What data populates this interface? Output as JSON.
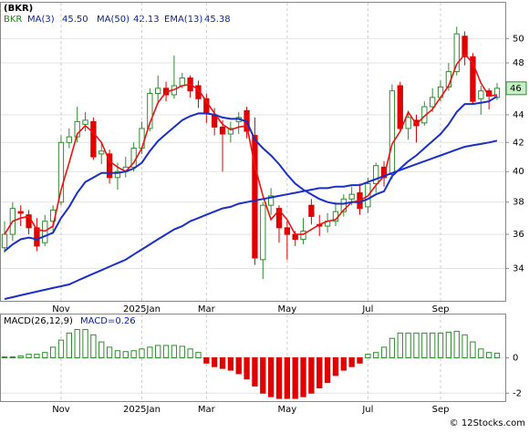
{
  "chart_data": [
    {
      "type": "candlestick",
      "title": "(BKR)",
      "name": "BKR",
      "categories": [
        null,
        null,
        null,
        null,
        null,
        null,
        null,
        "Nov",
        null,
        null,
        null,
        null,
        null,
        null,
        null,
        null,
        null,
        "2025Jan",
        null,
        null,
        null,
        null,
        null,
        null,
        null,
        "Mar",
        null,
        null,
        null,
        null,
        null,
        null,
        null,
        null,
        null,
        "May",
        null,
        null,
        null,
        null,
        null,
        null,
        null,
        null,
        null,
        "Jul",
        null,
        null,
        null,
        null,
        null,
        null,
        null,
        null,
        "Sep",
        null,
        null,
        null,
        null,
        null,
        null,
        null
      ],
      "open": [
        35.2,
        36,
        37.4,
        37.2,
        36.4,
        35.5,
        36.8,
        38,
        42,
        42.4,
        43.3,
        43.5,
        41.2,
        41.2,
        39.6,
        40,
        40.3,
        41.6,
        43,
        45.6,
        46,
        45.5,
        46.2,
        46.8,
        46.2,
        45.2,
        44,
        43.1,
        42.6,
        43.5,
        44.3,
        42.5,
        34.5,
        37.8,
        37.6,
        36.4,
        36,
        35.7,
        37.8,
        36.6,
        36.5,
        36.8,
        37.4,
        38.2,
        38.6,
        37.7,
        39.2,
        40.3,
        39.8,
        46.2,
        43,
        43.6,
        43.4,
        44.6,
        45.3,
        46.1,
        47.3,
        50.2,
        48.5,
        45.2,
        45.8,
        45.3
      ],
      "high": [
        36.8,
        38,
        37.8,
        37.5,
        37,
        37.2,
        37.8,
        42.5,
        43,
        44.6,
        44.2,
        43.8,
        42,
        41.5,
        40.6,
        41,
        42,
        43.5,
        46,
        47,
        46.5,
        48.6,
        47.2,
        47,
        46.6,
        45.6,
        44.5,
        43.6,
        43.5,
        44.2,
        44.6,
        43.8,
        38,
        38.9,
        37.8,
        36.8,
        36.2,
        37,
        38.2,
        37.2,
        37.3,
        38,
        38.5,
        39,
        39.2,
        39.6,
        40.6,
        40.7,
        46.3,
        46.5,
        44.3,
        44,
        45,
        46,
        46.6,
        48,
        51,
        50.6,
        48.8,
        46.2,
        46,
        46.4
      ],
      "low": [
        34.9,
        35.6,
        36.5,
        36,
        35,
        35.3,
        36.2,
        37.8,
        41.6,
        42,
        42.8,
        40.8,
        40.5,
        39.2,
        38.8,
        39.6,
        40,
        41.2,
        42.8,
        44.8,
        45,
        45.2,
        46,
        45.3,
        44.5,
        43.4,
        42.5,
        40,
        42,
        42.6,
        42.3,
        34.2,
        33.4,
        37.2,
        35.5,
        34.5,
        35.3,
        35.4,
        36.6,
        35.9,
        36.1,
        36.5,
        37.1,
        37.8,
        37.2,
        37.3,
        38.6,
        39,
        39.5,
        42.8,
        42.2,
        42,
        43.2,
        44.2,
        45,
        45.8,
        47,
        47.8,
        44.8,
        44,
        44.4,
        45.1
      ],
      "close": [
        36,
        37.6,
        37.3,
        36.4,
        35.3,
        36.8,
        37.5,
        42,
        42.4,
        43.5,
        43.6,
        41,
        41.4,
        39.6,
        40,
        40.3,
        41.6,
        43,
        45.6,
        46,
        45.5,
        46.2,
        46.8,
        45.8,
        45.2,
        44.1,
        43.1,
        42.6,
        43,
        43.8,
        42.8,
        34.6,
        37.8,
        38.4,
        36.4,
        36,
        35.7,
        36.2,
        37.1,
        36.5,
        36.8,
        37.4,
        38.2,
        38.5,
        37.6,
        39.2,
        40.4,
        39.6,
        45.8,
        43,
        43.8,
        43.2,
        44.6,
        45.3,
        46.1,
        47.3,
        50.4,
        48.5,
        45,
        45.8,
        45.4,
        46
      ],
      "up_color": "#2e8b2e",
      "down_color": "#e00000",
      "name_color": "#1a8a1a",
      "lines": [
        {
          "name": "MA(3)",
          "legend_value": {
            "value": 45.5,
            "label": "45.50"
          },
          "color": "#ee1111",
          "width": 1.6,
          "values": [
            36,
            36.8,
            37,
            37.1,
            36.3,
            36.2,
            36.5,
            38.8,
            40.6,
            42.6,
            43.2,
            42.7,
            42,
            40.7,
            40.3,
            40,
            40.6,
            41.6,
            43.4,
            44.9,
            45.7,
            45.9,
            46.2,
            46.3,
            45.9,
            45,
            44.1,
            43.3,
            42.9,
            43.1,
            43.2,
            40.4,
            38.4,
            36.9,
            37.5,
            36.9,
            36,
            36,
            36.3,
            36.6,
            36.8,
            36.9,
            37.5,
            38,
            38.1,
            38.4,
            39.1,
            39.7,
            41.9,
            42.8,
            44.2,
            43.3,
            43.9,
            44.4,
            45.3,
            46.2,
            47.9,
            48.7,
            48,
            46.4,
            45.4,
            45.5
          ]
        },
        {
          "name": "MA(50)",
          "legend_value": 42.13,
          "color": "#1a2fc8",
          "width": 2,
          "values": [
            32.3,
            32.4,
            32.5,
            32.6,
            32.7,
            32.8,
            32.9,
            33,
            33.1,
            33.3,
            33.5,
            33.7,
            33.9,
            34.1,
            34.3,
            34.5,
            34.8,
            35.1,
            35.4,
            35.7,
            36,
            36.3,
            36.5,
            36.8,
            37,
            37.2,
            37.4,
            37.6,
            37.7,
            37.9,
            38,
            38.1,
            38.2,
            38.3,
            38.4,
            38.5,
            38.6,
            38.7,
            38.8,
            38.9,
            38.9,
            39,
            39,
            39.1,
            39.1,
            39.3,
            39.5,
            39.7,
            39.9,
            40.1,
            40.3,
            40.5,
            40.7,
            40.9,
            41.1,
            41.3,
            41.5,
            41.7,
            41.8,
            41.9,
            42,
            42.13
          ]
        },
        {
          "name": "EMA(13)",
          "legend_value": 45.38,
          "color": "#1a2fc8",
          "width": 2,
          "values": [
            35,
            35.4,
            35.7,
            35.8,
            35.7,
            35.9,
            36.1,
            37,
            37.7,
            38.6,
            39.3,
            39.6,
            39.9,
            39.9,
            39.9,
            40,
            40.2,
            40.6,
            41.4,
            42.1,
            42.6,
            43.1,
            43.6,
            43.9,
            44.1,
            44.1,
            44,
            43.8,
            43.7,
            43.7,
            43.5,
            42.2,
            41.6,
            41.1,
            40.5,
            39.8,
            39.2,
            38.8,
            38.5,
            38.2,
            38,
            37.9,
            37.9,
            38,
            38,
            38.2,
            38.5,
            38.7,
            39.7,
            40.2,
            40.7,
            41.1,
            41.6,
            42.1,
            42.6,
            43.3,
            44.2,
            44.8,
            44.8,
            44.9,
            45,
            45.38
          ]
        }
      ],
      "last_price": 46,
      "last_price_color": "#c8f0c8",
      "ylim": [
        32.2,
        53.1
      ],
      "log_scale": true,
      "yticks": [
        34,
        36,
        38,
        40,
        42,
        44,
        48,
        50
      ],
      "grid": true
    },
    {
      "type": "bar",
      "title": "MACD(26,12,9)",
      "legend_label": "MACD=0.26",
      "categories": [
        null,
        null,
        null,
        null,
        null,
        null,
        null,
        "Nov",
        null,
        null,
        null,
        null,
        null,
        null,
        null,
        null,
        null,
        "2025Jan",
        null,
        null,
        null,
        null,
        null,
        null,
        null,
        "Mar",
        null,
        null,
        null,
        null,
        null,
        null,
        null,
        null,
        null,
        "May",
        null,
        null,
        null,
        null,
        null,
        null,
        null,
        null,
        null,
        "Jul",
        null,
        null,
        null,
        null,
        null,
        null,
        null,
        null,
        "Sep",
        null,
        null,
        null,
        null,
        null,
        null,
        null
      ],
      "values": [
        0.05,
        0.05,
        0.1,
        0.2,
        0.2,
        0.3,
        0.6,
        1,
        1.4,
        1.6,
        1.6,
        1.3,
        0.9,
        0.6,
        0.4,
        0.35,
        0.4,
        0.5,
        0.6,
        0.7,
        0.7,
        0.7,
        0.65,
        0.5,
        0.3,
        -0.3,
        -0.5,
        -0.6,
        -0.7,
        -0.9,
        -1.2,
        -1.6,
        -2,
        -2.2,
        -2.3,
        -2.3,
        -2.3,
        -2.2,
        -2,
        -1.7,
        -1.4,
        -1,
        -0.7,
        -0.5,
        -0.3,
        0.2,
        0.3,
        0.6,
        1.1,
        1.4,
        1.4,
        1.4,
        1.4,
        1.4,
        1.4,
        1.45,
        1.5,
        1.3,
        0.9,
        0.5,
        0.3,
        0.26
      ],
      "up_color": "#2e8b2e",
      "down_color": "#e00000",
      "ylim": [
        -2.45,
        2.45
      ],
      "yticks": [
        0,
        -2
      ],
      "grid": true
    }
  ],
  "watermark": "© 12Stocks.com"
}
